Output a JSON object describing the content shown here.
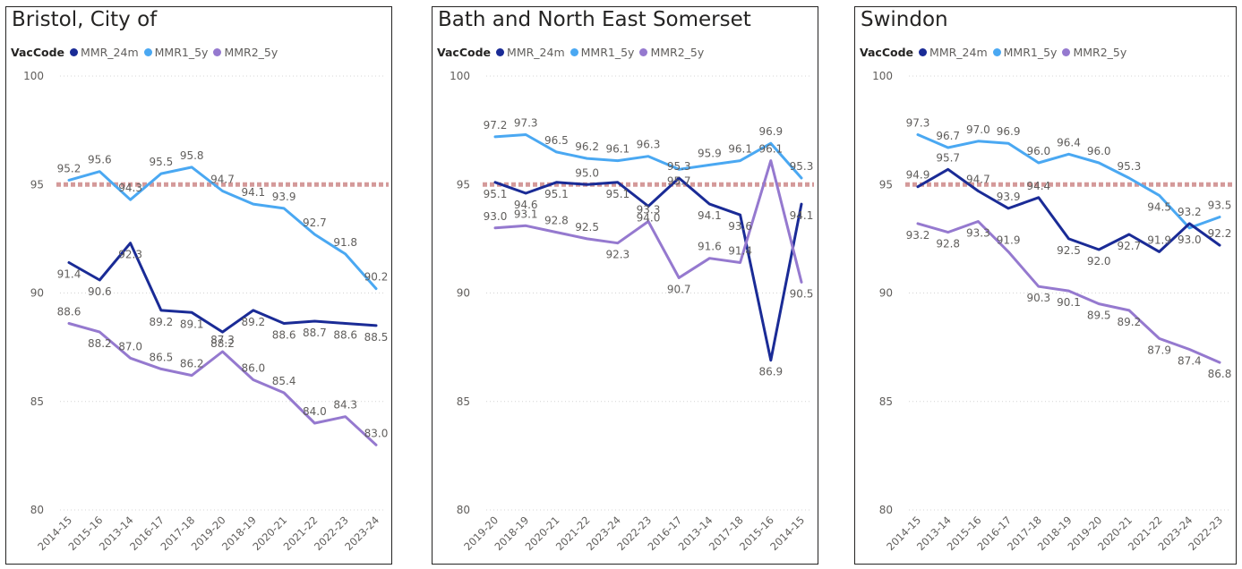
{
  "colors": {
    "MMR_24m": "#1a2b96",
    "MMR1_5y": "#4aa8f2",
    "MMR2_5y": "#9579cf",
    "target": "#d49a9a",
    "grid": "#d4d4d4",
    "text": "#605e5c"
  },
  "legend": {
    "title": "VacCode",
    "items": [
      "MMR_24m",
      "MMR1_5y",
      "MMR2_5y"
    ]
  },
  "chart_data": [
    {
      "type": "line",
      "title": "Bristol, City of",
      "ylim": [
        80,
        100
      ],
      "yticks": [
        80,
        85,
        90,
        95,
        100
      ],
      "target": 95,
      "categories": [
        "2014-15",
        "2015-16",
        "2013-14",
        "2016-17",
        "2017-18",
        "2019-20",
        "2018-19",
        "2020-21",
        "2021-22",
        "2022-23",
        "2023-24"
      ],
      "series": [
        {
          "name": "MMR_24m",
          "values": [
            91.4,
            90.6,
            92.3,
            89.2,
            89.1,
            88.2,
            89.2,
            88.6,
            88.7,
            88.6,
            88.5
          ]
        },
        {
          "name": "MMR1_5y",
          "values": [
            95.2,
            95.6,
            94.3,
            95.5,
            95.8,
            94.7,
            94.1,
            93.9,
            92.7,
            91.8,
            90.2
          ]
        },
        {
          "name": "MMR2_5y",
          "values": [
            88.6,
            88.2,
            87.0,
            86.5,
            86.2,
            87.3,
            86.0,
            85.4,
            84.0,
            84.3,
            83.0
          ]
        }
      ]
    },
    {
      "type": "line",
      "title": "Bath and North East Somerset",
      "ylim": [
        80,
        100
      ],
      "yticks": [
        80,
        85,
        90,
        95,
        100
      ],
      "target": 95,
      "categories": [
        "2019-20",
        "2018-19",
        "2020-21",
        "2021-22",
        "2023-24",
        "2022-23",
        "2016-17",
        "2013-14",
        "2017-18",
        "2015-16",
        "2014-15"
      ],
      "series": [
        {
          "name": "MMR_24m",
          "values": [
            95.1,
            94.6,
            95.1,
            95.0,
            95.1,
            94.0,
            95.3,
            94.1,
            93.6,
            86.9,
            94.1
          ]
        },
        {
          "name": "MMR1_5y",
          "values": [
            97.2,
            97.3,
            96.5,
            96.2,
            96.1,
            96.3,
            95.7,
            95.9,
            96.1,
            96.9,
            95.3
          ]
        },
        {
          "name": "MMR2_5y",
          "values": [
            93.0,
            93.1,
            92.8,
            92.5,
            92.3,
            93.3,
            90.7,
            91.6,
            91.4,
            96.1,
            90.5
          ]
        }
      ]
    },
    {
      "type": "line",
      "title": "Swindon",
      "ylim": [
        80,
        100
      ],
      "yticks": [
        80,
        85,
        90,
        95,
        100
      ],
      "target": 95,
      "categories": [
        "2014-15",
        "2013-14",
        "2015-16",
        "2016-17",
        "2017-18",
        "2018-19",
        "2019-20",
        "2020-21",
        "2021-22",
        "2023-24",
        "2022-23"
      ],
      "series": [
        {
          "name": "MMR_24m",
          "values": [
            94.9,
            95.7,
            94.7,
            93.9,
            94.4,
            92.5,
            92.0,
            92.7,
            91.9,
            93.2,
            92.2
          ]
        },
        {
          "name": "MMR1_5y",
          "values": [
            97.3,
            96.7,
            97.0,
            96.9,
            96.0,
            96.4,
            96.0,
            95.3,
            94.5,
            93.0,
            93.5
          ]
        },
        {
          "name": "MMR2_5y",
          "values": [
            93.2,
            92.8,
            93.3,
            91.9,
            90.3,
            90.1,
            89.5,
            89.2,
            87.9,
            87.4,
            86.8
          ]
        }
      ]
    }
  ]
}
